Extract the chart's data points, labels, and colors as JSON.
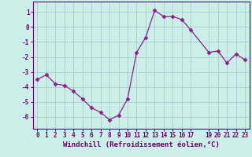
{
  "x": [
    0,
    1,
    2,
    3,
    4,
    5,
    6,
    7,
    8,
    9,
    10,
    11,
    12,
    13,
    14,
    15,
    16,
    17,
    19,
    20,
    21,
    22,
    23
  ],
  "y": [
    -3.5,
    -3.2,
    -3.8,
    -3.9,
    -4.3,
    -4.8,
    -5.4,
    -5.7,
    -6.2,
    -5.9,
    -4.8,
    -1.7,
    -0.7,
    1.1,
    0.7,
    0.7,
    0.5,
    -0.2,
    -1.7,
    -1.6,
    -2.4,
    -1.8,
    -2.2
  ],
  "line_color": "#882288",
  "marker": "D",
  "marker_size": 2.5,
  "bg_color": "#cceee8",
  "grid_color": "#aacccc",
  "xlabel": "Windchill (Refroidissement éolien,°C)",
  "xlim": [
    -0.5,
    23.5
  ],
  "ylim": [
    -6.8,
    1.7
  ],
  "yticks": [
    1,
    0,
    -1,
    -2,
    -3,
    -4,
    -5,
    -6
  ],
  "xticks": [
    0,
    1,
    2,
    3,
    4,
    5,
    6,
    7,
    8,
    9,
    10,
    11,
    12,
    13,
    14,
    15,
    16,
    17,
    19,
    20,
    21,
    22,
    23
  ],
  "xtick_labels": [
    "0",
    "1",
    "2",
    "3",
    "4",
    "5",
    "6",
    "7",
    "8",
    "9",
    "10",
    "11",
    "12",
    "13",
    "14",
    "15",
    "16",
    "17",
    "19",
    "20",
    "21",
    "22",
    "23"
  ],
  "axis_color": "#660066",
  "label_fontsize": 6.5,
  "tick_fontsize": 5.5
}
